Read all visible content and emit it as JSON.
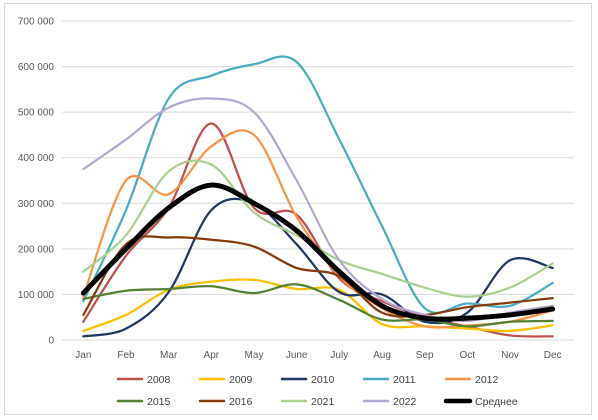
{
  "chart_data": {
    "type": "line",
    "title": "",
    "xlabel": "",
    "ylabel": "",
    "categories": [
      "Jan",
      "Feb",
      "Mar",
      "Apr",
      "May",
      "June",
      "July",
      "Aug",
      "Sep",
      "Oct",
      "Nov",
      "Dec"
    ],
    "ylim": [
      0,
      700000
    ],
    "y_ticks": [
      {
        "value": 0,
        "label": "0"
      },
      {
        "value": 100000,
        "label": "100 000"
      },
      {
        "value": 200000,
        "label": "200 000"
      },
      {
        "value": 300000,
        "label": "300 000"
      },
      {
        "value": 400000,
        "label": "400 000"
      },
      {
        "value": 500000,
        "label": "500 000"
      },
      {
        "value": 600000,
        "label": "600 000"
      },
      {
        "value": 700000,
        "label": "700 000"
      }
    ],
    "grid": true,
    "legend_position": "bottom",
    "smooth": true,
    "series": [
      {
        "name": "2008",
        "color": "#c0504d",
        "values": [
          40000,
          185000,
          290000,
          475000,
          290000,
          275000,
          135000,
          85000,
          50000,
          30000,
          10000,
          8000
        ]
      },
      {
        "name": "2009",
        "color": "#ffc000",
        "values": [
          20000,
          55000,
          110000,
          128000,
          132000,
          112000,
          110000,
          35000,
          30000,
          25000,
          20000,
          32000
        ]
      },
      {
        "name": "2010",
        "color": "#1f3864",
        "values": [
          8000,
          25000,
          105000,
          285000,
          300000,
          210000,
          105000,
          100000,
          40000,
          60000,
          175000,
          158000
        ]
      },
      {
        "name": "2011",
        "color": "#4bacc6",
        "values": [
          85000,
          285000,
          530000,
          580000,
          605000,
          610000,
          440000,
          250000,
          70000,
          80000,
          75000,
          125000
        ]
      },
      {
        "name": "2012",
        "color": "#f79646",
        "values": [
          95000,
          350000,
          320000,
          425000,
          450000,
          270000,
          140000,
          70000,
          30000,
          32000,
          40000,
          65000
        ]
      },
      {
        "name": "2015",
        "color": "#548235",
        "values": [
          90000,
          108000,
          112000,
          118000,
          103000,
          122000,
          88000,
          45000,
          45000,
          30000,
          40000,
          42000
        ]
      },
      {
        "name": "2016",
        "color": "#843c0c",
        "values": [
          55000,
          210000,
          225000,
          220000,
          205000,
          158000,
          140000,
          60000,
          55000,
          72000,
          82000,
          92000
        ]
      },
      {
        "name": "2021",
        "color": "#a9d18e",
        "values": [
          150000,
          230000,
          370000,
          385000,
          280000,
          230000,
          175000,
          145000,
          115000,
          95000,
          115000,
          168000
        ]
      },
      {
        "name": "2022",
        "color": "#b4a7d6",
        "values": [
          375000,
          440000,
          510000,
          530000,
          500000,
          350000,
          175000,
          90000,
          55000,
          42000,
          60000,
          75000
        ]
      },
      {
        "name": "Среднее",
        "color": "#000000",
        "values": [
          103000,
          200000,
          290000,
          340000,
          300000,
          240000,
          150000,
          75000,
          48000,
          48000,
          55000,
          68000
        ],
        "thick": true
      }
    ]
  }
}
